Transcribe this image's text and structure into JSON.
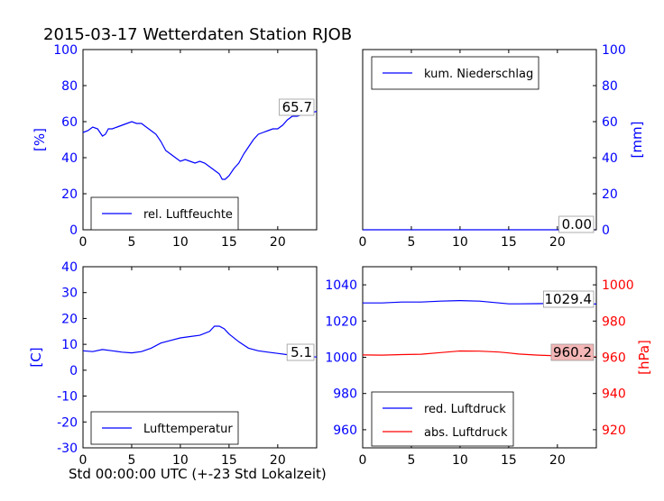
{
  "figure": {
    "title": "2015-03-17 Wetterdaten Station RJOB",
    "xlabel": "Std 00:00:00 UTC (+-23 Std Lokalzeit)"
  },
  "colors": {
    "blue": "#0000ff",
    "red": "#ff0000",
    "black": "#000000",
    "value_box_red_bg": "#f4b6b6"
  },
  "chart_data": [
    {
      "type": "line",
      "panel": "top-left",
      "ylabel": "[%]",
      "xlim": [
        0,
        24
      ],
      "ylim": [
        0,
        100
      ],
      "xticks": [
        0,
        5,
        10,
        15,
        20
      ],
      "yticks": [
        0,
        20,
        40,
        60,
        80,
        100
      ],
      "legend": "lower-left",
      "series": [
        {
          "name": "rel. Luftfeuchte",
          "color": "#0000ff",
          "x": [
            0,
            0.5,
            1,
            1.5,
            2,
            2.3,
            2.6,
            3,
            3.5,
            4,
            4.5,
            5,
            5.5,
            6,
            6.5,
            7,
            7.5,
            8,
            8.5,
            9,
            9.5,
            10,
            10.5,
            11,
            11.5,
            12,
            12.5,
            13,
            13.5,
            14,
            14.3,
            14.6,
            15,
            15.5,
            16,
            16.5,
            17,
            17.5,
            18,
            18.5,
            19,
            19.5,
            20,
            20.5,
            21,
            21.5,
            22,
            22.5,
            23,
            23.5,
            24
          ],
          "y": [
            54,
            55,
            57,
            56,
            52,
            53,
            56,
            56,
            57,
            58,
            59,
            60,
            59,
            59,
            57,
            55,
            53,
            49,
            44,
            42,
            40,
            38,
            39,
            38,
            37,
            38,
            37,
            35,
            33,
            31,
            28,
            28,
            30,
            34,
            37,
            42,
            46,
            50,
            53,
            54,
            55,
            56,
            56,
            58,
            61,
            63,
            63,
            64,
            64,
            65,
            65.7
          ]
        }
      ],
      "last_value_label": "65.7"
    },
    {
      "type": "line",
      "panel": "top-right",
      "ylabel": "[mm]",
      "xlim": [
        0,
        24
      ],
      "ylim": [
        0,
        100
      ],
      "xticks": [
        0,
        5,
        10,
        15,
        20
      ],
      "yticks": [
        0,
        20,
        40,
        60,
        80,
        100
      ],
      "y_axis_side": "right",
      "legend": "top-left",
      "series": [
        {
          "name": "kum. Niederschlag",
          "color": "#0000ff",
          "x": [
            0,
            24
          ],
          "y": [
            0,
            0
          ]
        }
      ],
      "last_value_label": "0.00"
    },
    {
      "type": "line",
      "panel": "bottom-left",
      "ylabel": "[C]",
      "xlim": [
        0,
        24
      ],
      "ylim": [
        -30,
        40
      ],
      "xticks": [
        0,
        5,
        10,
        15,
        20
      ],
      "yticks": [
        -30,
        -20,
        -10,
        0,
        10,
        20,
        30,
        40
      ],
      "legend": "lower-left",
      "series": [
        {
          "name": "Lufttemperatur",
          "color": "#0000ff",
          "x": [
            0,
            1,
            2,
            3,
            4,
            5,
            6,
            7,
            8,
            9,
            10,
            11,
            12,
            13,
            13.5,
            14,
            14.5,
            15,
            16,
            17,
            18,
            19,
            20,
            21,
            22,
            23,
            24
          ],
          "y": [
            7.5,
            7.2,
            8,
            7.5,
            7,
            6.7,
            7.2,
            8.5,
            10.5,
            11.5,
            12.5,
            13,
            13.5,
            15,
            17,
            17,
            16,
            14,
            11,
            8.5,
            7.5,
            7,
            6.5,
            6,
            5.8,
            5.4,
            5.1
          ]
        }
      ],
      "last_value_label": "5.1"
    },
    {
      "type": "line",
      "panel": "bottom-right",
      "xlim": [
        0,
        24
      ],
      "xticks": [
        0,
        5,
        10,
        15,
        20
      ],
      "left_axis": {
        "ylim": [
          950,
          1050
        ],
        "yticks": [
          960,
          980,
          1000,
          1020,
          1040
        ]
      },
      "right_axis": {
        "ylabel": "[hPa]",
        "ylim": [
          910,
          1010
        ],
        "yticks": [
          920,
          940,
          960,
          980,
          1000
        ]
      },
      "legend": "lower-left",
      "series": [
        {
          "name": "red. Luftdruck",
          "color": "#0000ff",
          "axis": "left",
          "x": [
            0,
            2,
            4,
            6,
            8,
            10,
            12,
            14,
            15,
            16,
            18,
            20,
            22,
            24
          ],
          "y": [
            1030,
            1030,
            1030.5,
            1030.5,
            1031,
            1031.3,
            1031,
            1030,
            1029.5,
            1029.5,
            1029.6,
            1029.8,
            1029.5,
            1029.4
          ]
        },
        {
          "name": "abs. Luftdruck",
          "color": "#ff0000",
          "axis": "right",
          "x": [
            0,
            2,
            4,
            6,
            8,
            10,
            12,
            14,
            15,
            16,
            18,
            20,
            22,
            24
          ],
          "y": [
            961.3,
            961.2,
            961.5,
            961.7,
            962.6,
            963.5,
            963.4,
            962.9,
            962.4,
            961.8,
            961.2,
            960.8,
            960.5,
            960.2
          ]
        }
      ],
      "last_value_labels": [
        "1029.4",
        "960.2"
      ]
    }
  ]
}
